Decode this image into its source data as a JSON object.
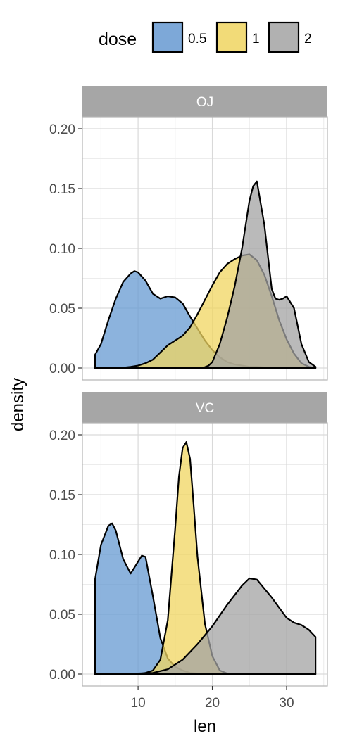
{
  "chart_data": {
    "type": "area",
    "xlabel": "len",
    "ylabel": "density",
    "xlim": [
      2.5,
      35.5
    ],
    "x_ticks": [
      10,
      20,
      30
    ],
    "x_tick_labels": [
      "10",
      "20",
      "30"
    ],
    "ylim": [
      -0.01,
      0.21
    ],
    "y_ticks": [
      0,
      0.05,
      0.1,
      0.15,
      0.2
    ],
    "y_tick_labels": [
      "0.00",
      "0.05",
      "0.10",
      "0.15",
      "0.20"
    ],
    "grid": true,
    "legend": {
      "title": "dose",
      "position": "top",
      "entries": [
        {
          "label": "0.5",
          "color": "#6699d1"
        },
        {
          "label": "1",
          "color": "#f0d560"
        },
        {
          "label": "2",
          "color": "#a3a3a3"
        }
      ]
    },
    "colors": {
      "strip": "#a6a6a6",
      "grid": "#d9d9d9",
      "panel_border": "#b3b3b3"
    },
    "facets": [
      {
        "label": "OJ",
        "series": [
          {
            "name": "0.5",
            "x": [
              4.2,
              5,
              6,
              7,
              8,
              9,
              9.5,
              10,
              11,
              12,
              13,
              14,
              15,
              16,
              17,
              18,
              19,
              20,
              21,
              22,
              23,
              24,
              25,
              26,
              27,
              28,
              29,
              30,
              31,
              32,
              33,
              33.9
            ],
            "y": [
              0.011,
              0.02,
              0.04,
              0.058,
              0.072,
              0.079,
              0.081,
              0.08,
              0.073,
              0.062,
              0.058,
              0.06,
              0.059,
              0.054,
              0.043,
              0.033,
              0.023,
              0.015,
              0.009,
              0.005,
              0.003,
              0.002,
              0.001,
              0.001,
              0.0005,
              0.0002,
              0.0001,
              0,
              0,
              0,
              0,
              0
            ]
          },
          {
            "name": "1",
            "x": [
              4.2,
              6,
              8,
              9,
              10,
              11,
              12,
              13,
              14,
              15,
              16,
              17,
              18,
              19,
              20,
              21,
              22,
              23,
              24,
              25,
              26,
              27,
              28,
              29,
              30,
              31,
              32,
              33,
              33.9
            ],
            "y": [
              0,
              0,
              0.0003,
              0.001,
              0.002,
              0.004,
              0.007,
              0.013,
              0.019,
              0.023,
              0.027,
              0.034,
              0.045,
              0.057,
              0.069,
              0.08,
              0.087,
              0.091,
              0.094,
              0.095,
              0.09,
              0.078,
              0.06,
              0.04,
              0.024,
              0.012,
              0.004,
              0.001,
              0
            ]
          },
          {
            "name": "2",
            "x": [
              18.7,
              19.5,
              20,
              21,
              22,
              23,
              24,
              25,
              25.5,
              26,
              27,
              28,
              28.5,
              29,
              29.5,
              30,
              31,
              32,
              33,
              33.9
            ],
            "y": [
              0,
              0.002,
              0.005,
              0.02,
              0.042,
              0.068,
              0.1,
              0.14,
              0.152,
              0.156,
              0.12,
              0.066,
              0.058,
              0.057,
              0.058,
              0.06,
              0.05,
              0.02,
              0.005,
              0.001
            ]
          }
        ]
      },
      {
        "label": "VC",
        "series": [
          {
            "name": "0.5",
            "x": [
              4.2,
              5,
              6,
              6.5,
              7,
              8,
              9,
              10,
              10.5,
              11,
              12,
              13,
              14,
              15,
              16,
              17,
              18,
              19,
              20,
              22,
              24,
              26,
              28,
              30,
              32,
              33.9
            ],
            "y": [
              0.079,
              0.108,
              0.124,
              0.126,
              0.12,
              0.096,
              0.084,
              0.094,
              0.099,
              0.098,
              0.065,
              0.03,
              0.013,
              0.006,
              0.003,
              0.001,
              0.0005,
              0.0002,
              0,
              0,
              0,
              0,
              0,
              0,
              0,
              0
            ]
          },
          {
            "name": "1",
            "x": [
              4.2,
              10,
              11,
              12,
              13,
              14,
              15,
              15.5,
              16,
              16.5,
              17,
              17.5,
              18,
              19,
              20,
              21,
              22,
              23,
              24,
              26,
              28,
              30,
              32,
              33.9
            ],
            "y": [
              0,
              0,
              0.001,
              0.003,
              0.012,
              0.045,
              0.122,
              0.165,
              0.189,
              0.194,
              0.18,
              0.14,
              0.098,
              0.042,
              0.015,
              0.003,
              0.0005,
              0,
              0,
              0,
              0,
              0,
              0,
              0
            ]
          },
          {
            "name": "2",
            "x": [
              4.2,
              8,
              10,
              12,
              14,
              16,
              18,
              20,
              22,
              24,
              25,
              26,
              28,
              30,
              31,
              32,
              33,
              33.9
            ],
            "y": [
              0,
              0,
              0.0005,
              0.001,
              0.004,
              0.012,
              0.025,
              0.04,
              0.058,
              0.074,
              0.08,
              0.079,
              0.064,
              0.047,
              0.043,
              0.041,
              0.037,
              0.031
            ]
          }
        ]
      }
    ]
  }
}
